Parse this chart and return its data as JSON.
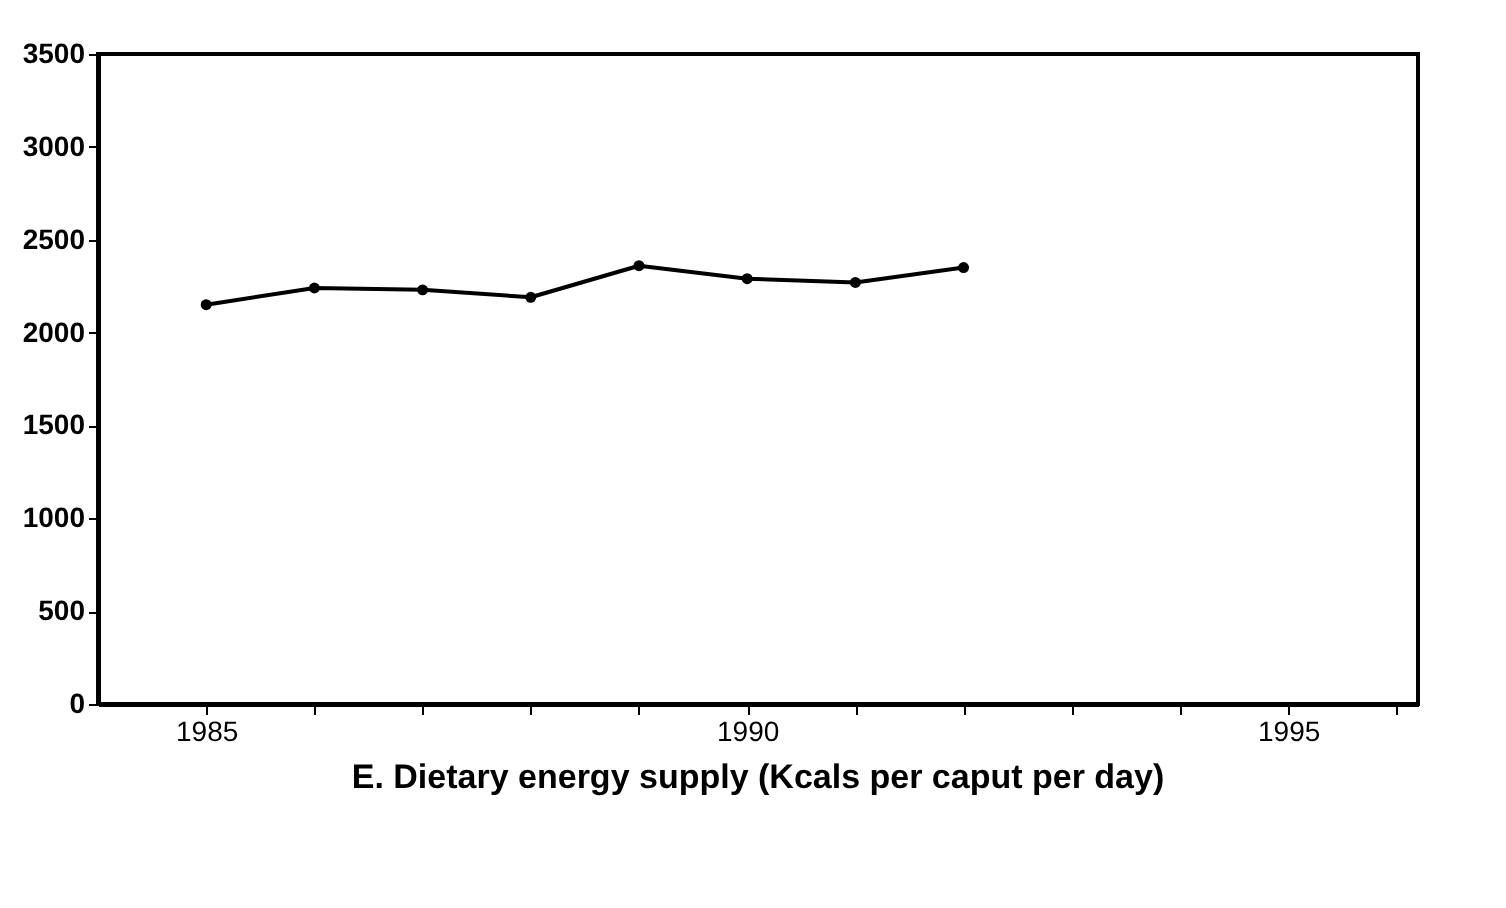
{
  "chart_data": {
    "type": "line",
    "title": "E. Dietary energy supply (Kcals per caput per day)",
    "x": [
      1985,
      1986,
      1987,
      1988,
      1989,
      1990,
      1991,
      1992
    ],
    "series": [
      {
        "color": "#000000",
        "values": [
          2150,
          2240,
          2230,
          2190,
          2360,
          2290,
          2270,
          2350
        ]
      }
    ],
    "xlim": [
      1984,
      1996.2
    ],
    "xticks": [
      1985,
      {
        "value": 1986,
        "label": null
      },
      {
        "value": 1987,
        "label": null
      },
      {
        "value": 1988,
        "label": null
      },
      {
        "value": 1989,
        "label": null
      },
      1990,
      {
        "value": 1991,
        "label": null
      },
      {
        "value": 1992,
        "label": null
      },
      {
        "value": 1993,
        "label": null
      },
      {
        "value": 1994,
        "label": null
      },
      1995,
      {
        "value": 1996,
        "label": null
      }
    ],
    "ylim": [
      0,
      3500
    ],
    "yticks": [
      0,
      500,
      1000,
      1500,
      2000,
      2500,
      3000,
      3500
    ],
    "grid": false,
    "marker": "circle",
    "line_style": "solid"
  }
}
